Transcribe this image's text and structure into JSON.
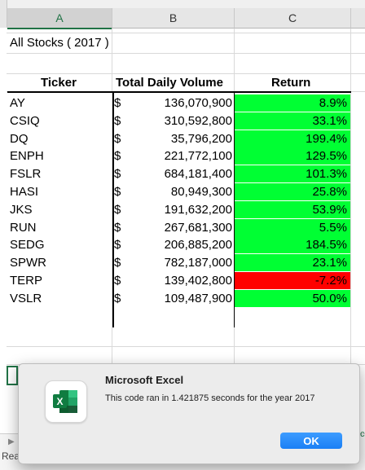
{
  "columns": [
    "A",
    "B",
    "C"
  ],
  "title": "All Stocks ( 2017 )",
  "headers": {
    "ticker": "Ticker",
    "volume": "Total Daily Volume",
    "return": "Return"
  },
  "currency_symbol": "$",
  "rows": [
    {
      "ticker": "AY",
      "volume": "136,070,900",
      "return": "8.9%",
      "color": "#00ff33"
    },
    {
      "ticker": "CSIQ",
      "volume": "310,592,800",
      "return": "33.1%",
      "color": "#00ff33"
    },
    {
      "ticker": "DQ",
      "volume": "35,796,200",
      "return": "199.4%",
      "color": "#00ff33"
    },
    {
      "ticker": "ENPH",
      "volume": "221,772,100",
      "return": "129.5%",
      "color": "#00ff33"
    },
    {
      "ticker": "FSLR",
      "volume": "684,181,400",
      "return": "101.3%",
      "color": "#00ff33"
    },
    {
      "ticker": "HASI",
      "volume": "80,949,300",
      "return": "25.8%",
      "color": "#00ff33"
    },
    {
      "ticker": "JKS",
      "volume": "191,632,200",
      "return": "53.9%",
      "color": "#00ff33"
    },
    {
      "ticker": "RUN",
      "volume": "267,681,300",
      "return": "5.5%",
      "color": "#00ff33"
    },
    {
      "ticker": "SEDG",
      "volume": "206,885,200",
      "return": "184.5%",
      "color": "#00ff33"
    },
    {
      "ticker": "SPWR",
      "volume": "782,187,000",
      "return": "23.1%",
      "color": "#00ff33"
    },
    {
      "ticker": "TERP",
      "volume": "139,402,800",
      "return": "-7.2%",
      "color": "#ff0000"
    },
    {
      "ticker": "VSLR",
      "volume": "109,487,900",
      "return": "50.0%",
      "color": "#00ff33"
    }
  ],
  "status": {
    "ready": "Rea"
  },
  "dialog": {
    "title": "Microsoft Excel",
    "message": "This code ran in 1.421875 seconds for the year 2017",
    "ok_label": "OK",
    "icon": "excel-app-icon"
  },
  "colors": {
    "positive": "#00ff33",
    "negative": "#ff0000",
    "accent": "#217346",
    "button": "#1a7ff5"
  }
}
